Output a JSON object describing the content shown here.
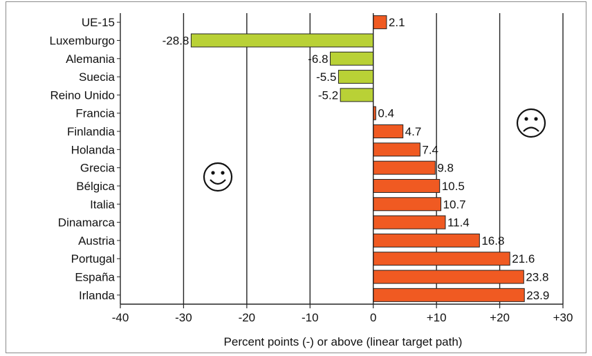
{
  "chart_data": {
    "type": "bar",
    "orientation": "horizontal",
    "categories": [
      "UE-15",
      "Luxemburgo",
      "Alemania",
      "Suecia",
      "Reino Unido",
      "Francia",
      "Finlandia",
      "Holanda",
      "Grecia",
      "Bélgica",
      "Italia",
      "Dinamarca",
      "Austria",
      "Portugal",
      "España",
      "Irlanda"
    ],
    "values": [
      2.1,
      -28.8,
      -6.8,
      -5.5,
      -5.2,
      0.4,
      4.7,
      7.4,
      9.8,
      10.5,
      10.7,
      11.4,
      16.8,
      21.6,
      23.8,
      23.9
    ],
    "value_labels": [
      "2.1",
      "-28.8",
      "-6.8",
      "-5.5",
      "-5.2",
      "0.4",
      "4.7",
      "7.4",
      "9.8",
      "10.5",
      "10.7",
      "11.4",
      "16.8",
      "21.6",
      "23.8",
      "23.9"
    ],
    "xlim": [
      -40,
      30
    ],
    "x_ticks": [
      -40,
      -30,
      -20,
      -10,
      0,
      10,
      20,
      30
    ],
    "x_tick_labels": [
      "-40",
      "-30",
      "-20",
      "-10",
      "0",
      "+10",
      "+20",
      "+30"
    ],
    "xlabel": "Percent points (-) or above (linear target path)",
    "ylabel": "",
    "title": "",
    "grid": "vertical",
    "colors": {
      "positive": "#f05a22",
      "negative": "#b9d136",
      "bar_outline": "#222222"
    },
    "annotations": [
      {
        "icon": "smiley-face-icon",
        "position": "left-middle"
      },
      {
        "icon": "frowning-face-icon",
        "position": "right-upper"
      }
    ]
  }
}
